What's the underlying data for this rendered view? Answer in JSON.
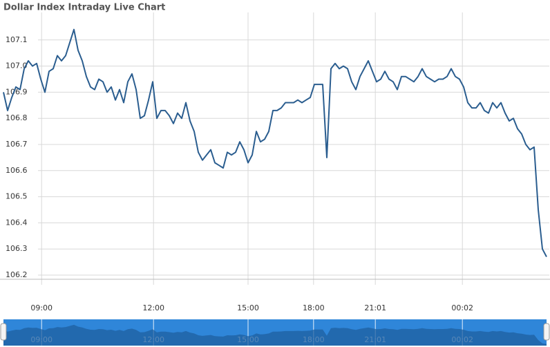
{
  "chart_data": {
    "type": "line",
    "title": "Dollar Index Intraday Live Chart",
    "series": [
      {
        "name": "Dollar Index",
        "color": "#2a5d8f",
        "values": [
          106.9,
          106.83,
          106.88,
          106.92,
          106.91,
          106.99,
          107.02,
          107.0,
          107.01,
          106.95,
          106.9,
          106.98,
          106.99,
          107.04,
          107.02,
          107.04,
          107.09,
          107.14,
          107.06,
          107.02,
          106.96,
          106.92,
          106.91,
          106.95,
          106.94,
          106.9,
          106.92,
          106.87,
          106.91,
          106.86,
          106.94,
          106.97,
          106.91,
          106.8,
          106.81,
          106.87,
          106.94,
          106.8,
          106.83,
          106.83,
          106.81,
          106.78,
          106.82,
          106.8,
          106.86,
          106.79,
          106.75,
          106.67,
          106.64,
          106.66,
          106.68,
          106.63,
          106.62,
          106.61,
          106.67,
          106.66,
          106.67,
          106.71,
          106.68,
          106.63,
          106.66,
          106.75,
          106.71,
          106.72,
          106.75,
          106.83,
          106.83,
          106.84,
          106.86,
          106.86,
          106.86,
          106.87,
          106.86,
          106.87,
          106.88,
          106.93,
          106.93,
          106.93,
          106.65,
          106.99,
          107.01,
          106.99,
          107.0,
          106.99,
          106.94,
          106.91,
          106.96,
          106.99,
          107.02,
          106.98,
          106.94,
          106.95,
          106.98,
          106.95,
          106.94,
          106.91,
          106.96,
          106.96,
          106.95,
          106.94,
          106.96,
          106.99,
          106.96,
          106.95,
          106.94,
          106.95,
          106.95,
          106.96,
          106.99,
          106.96,
          106.95,
          106.92,
          106.86,
          106.84,
          106.84,
          106.86,
          106.83,
          106.82,
          106.86,
          106.84,
          106.86,
          106.82,
          106.79,
          106.8,
          106.76,
          106.74,
          106.7,
          106.68,
          106.69,
          106.45,
          106.3,
          106.27
        ]
      }
    ],
    "xlim": [
      0,
      131
    ],
    "xticks": [
      {
        "value": 9.2,
        "label": "09:00"
      },
      {
        "value": 36.2,
        "label": "12:00"
      },
      {
        "value": 59,
        "label": "15:00"
      },
      {
        "value": 74.8,
        "label": "18:00"
      },
      {
        "value": 89.7,
        "label": "21:01"
      },
      {
        "value": 110.7,
        "label": "00:02"
      }
    ],
    "ylim": [
      106.2,
      107.2
    ],
    "yticks": [
      106.2,
      106.3,
      106.4,
      106.5,
      106.6,
      106.7,
      106.8,
      106.9,
      {
        "value": 107.0,
        "label": "107.0"
      },
      107.1
    ],
    "grid": true
  }
}
